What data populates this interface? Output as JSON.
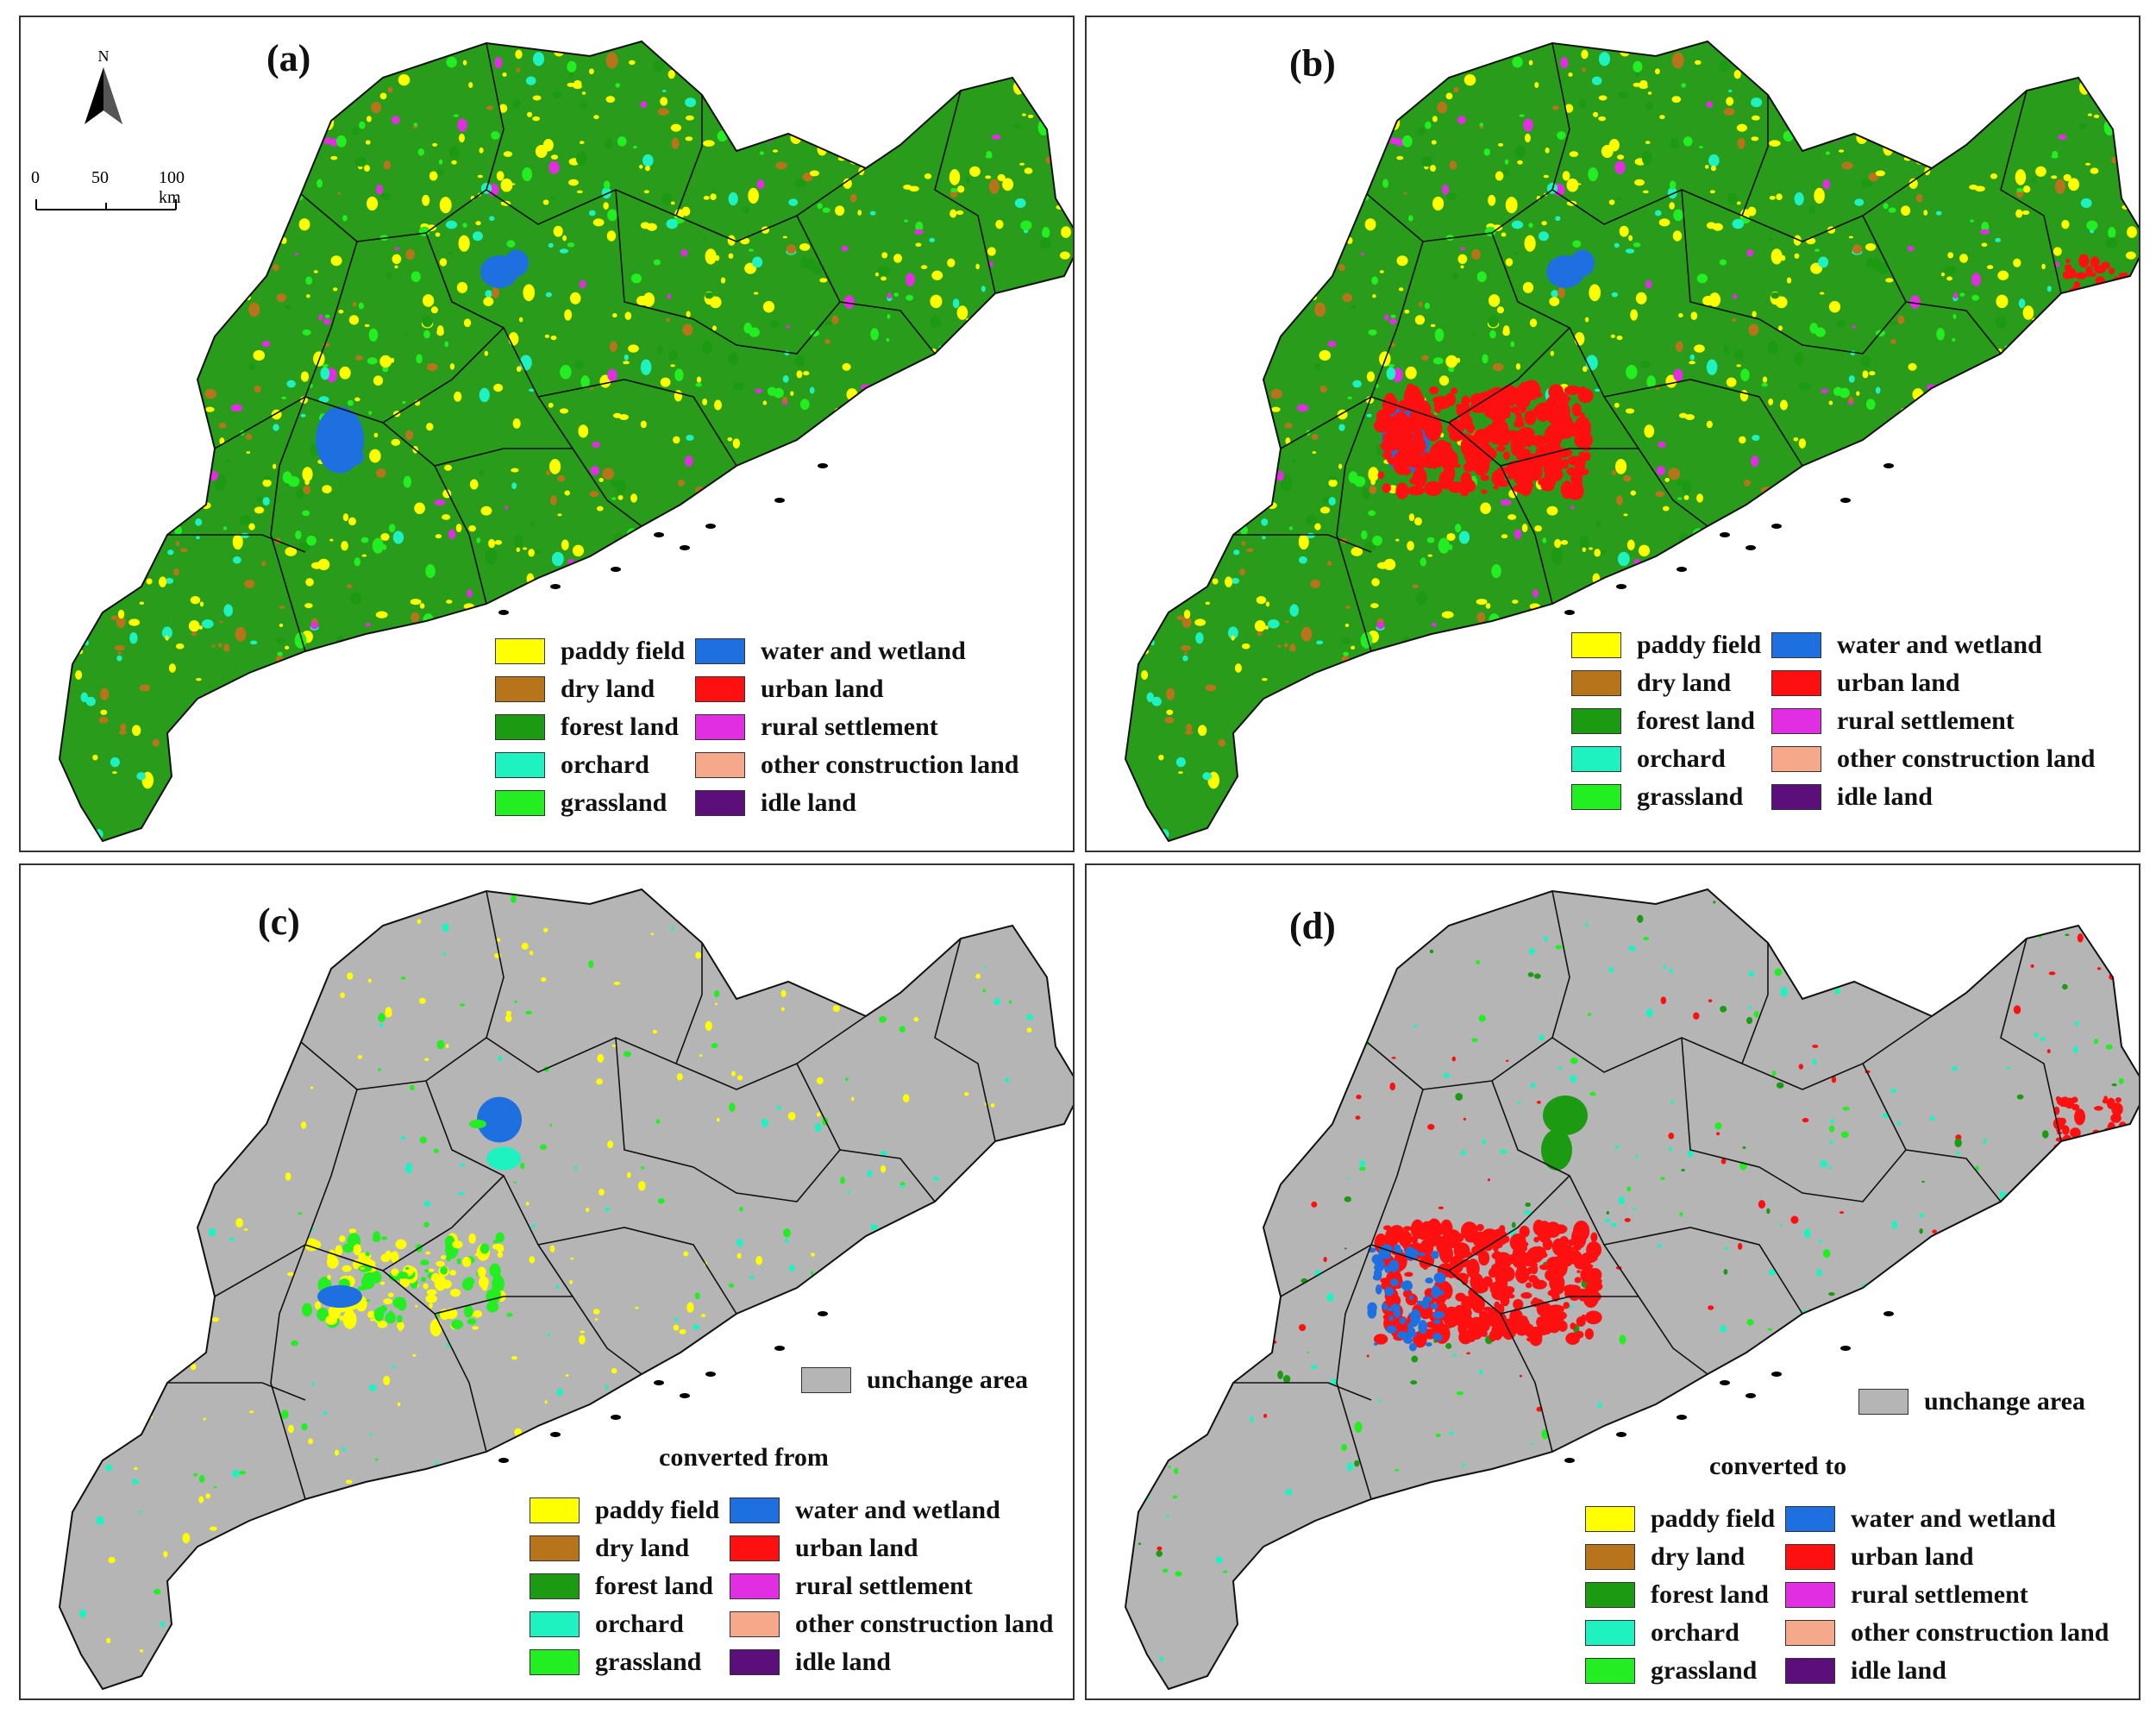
{
  "panels": {
    "a": {
      "label": "(a)"
    },
    "b": {
      "label": "(b)"
    },
    "c": {
      "label": "(c)",
      "unchanged": "unchange area",
      "legend_title": "converted from"
    },
    "d": {
      "label": "(d)",
      "unchanged": "unchange area",
      "legend_title": "converted to"
    }
  },
  "north_arrow": {
    "letter": "N"
  },
  "scale_bar": {
    "ticks": [
      "0",
      "50",
      "100 km"
    ]
  },
  "legend_items": [
    {
      "label": "paddy  field",
      "color": "#ffff00"
    },
    {
      "label": "dry land",
      "color": "#b8741a"
    },
    {
      "label": "forest land",
      "color": "#1c9a12"
    },
    {
      "label": "orchard",
      "color": "#1df2c0"
    },
    {
      "label": "grassland",
      "color": "#22ee22"
    },
    {
      "label": "water and wetland",
      "color": "#1e6fe0"
    },
    {
      "label": "urban land",
      "color": "#ff1010"
    },
    {
      "label": "rural settlement",
      "color": "#e22ee2"
    },
    {
      "label": "other construction land",
      "color": "#f5a98a"
    },
    {
      "label": "idle land",
      "color": "#5c0f7a"
    }
  ],
  "colors": {
    "unchanged": "#b5b5b5",
    "boundary": "#111111",
    "forest_bg": "#2a9c1c"
  }
}
